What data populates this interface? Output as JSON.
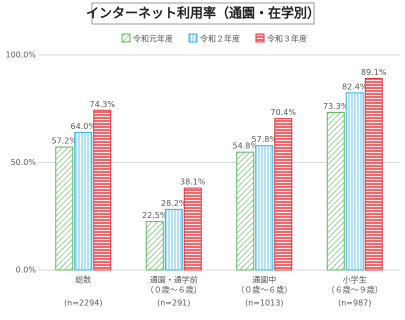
{
  "chart_data": {
    "type": "bar",
    "title": "インターネット利用率（通園・在学別）",
    "categories": [
      "総数",
      "通園・通学前",
      "通園中",
      "小学生"
    ],
    "category_notes": [
      null,
      "（０歳～６歳）",
      "（０歳～６歳）",
      "（６歳～９歳）"
    ],
    "sample_sizes": [
      "(n=2294)",
      "(n=291)",
      "(n=1013)",
      "(n=987)"
    ],
    "series": [
      {
        "name": "令和元年度",
        "color": "#5cb85c",
        "values": [
          57.2,
          22.5,
          54.8,
          73.3
        ],
        "value_labels": [
          "57.2%",
          "22.5%",
          "54.8%",
          "73.3%"
        ]
      },
      {
        "name": "令和２年度",
        "color": "#3bb0e0",
        "values": [
          64.0,
          28.2,
          57.8,
          82.4
        ],
        "value_labels": [
          "64.0%",
          "28.2%",
          "57.8%",
          "82.4%"
        ]
      },
      {
        "name": "令和３年度",
        "color": "#e8323c",
        "values": [
          74.3,
          38.1,
          70.4,
          89.1
        ],
        "value_labels": [
          "74.3%",
          "38.1%",
          "70.4%",
          "89.1%"
        ]
      }
    ],
    "ylim": [
      0,
      100
    ],
    "yticks": [
      {
        "value": 0,
        "label": "0.0%"
      },
      {
        "value": 50,
        "label": "50.0%"
      },
      {
        "value": 100,
        "label": "100.0%"
      }
    ],
    "grid": true
  }
}
